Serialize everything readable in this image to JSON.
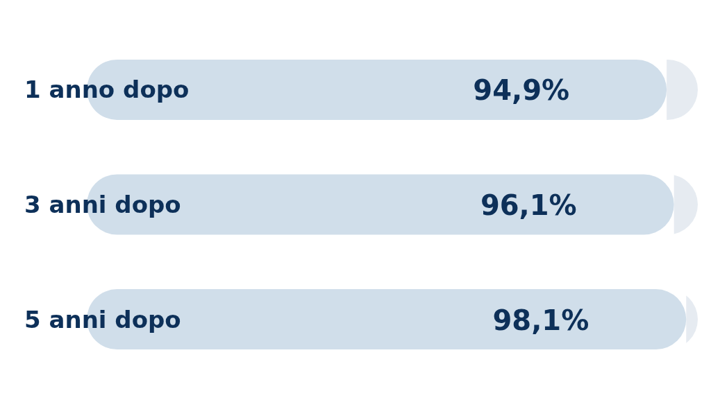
{
  "chart_data": {
    "type": "bar",
    "orientation": "horizontal",
    "stacked": true,
    "categories": [
      "1 anno dopo",
      "3 anni dopo",
      "5 anni dopo"
    ],
    "series": [
      {
        "color": "#d0deea",
        "values": [
          94.9,
          96.1,
          98.1
        ],
        "value_labels": [
          "94,9%",
          "96,1%",
          "98,1%"
        ]
      },
      {
        "color": "#e6ebf1",
        "values": [
          5.1,
          3.9,
          1.9
        ]
      }
    ],
    "xlim": [
      0,
      100
    ],
    "tick_labels": "y"
  }
}
